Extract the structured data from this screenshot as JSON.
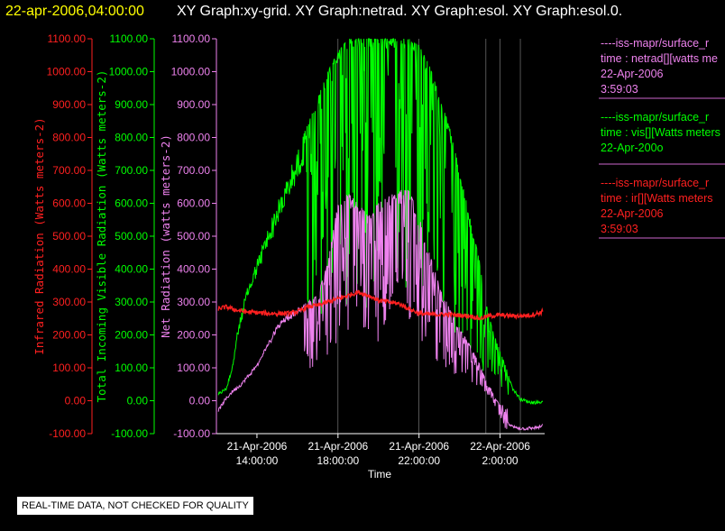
{
  "header": {
    "datetime": "22-apr-2006,04:00:00",
    "graph_title": "XY Graph:xy-grid.  XY Graph:netrad.  XY Graph:esol.  XY Graph:esol.0."
  },
  "colors": {
    "background": "#000000",
    "header_datetime": "#ffff00",
    "infrared": "#ff2020",
    "visible": "#00ff00",
    "net": "#ee82ee",
    "axis_white": "#ffffff",
    "grid": "#ffffff",
    "legend_rule": "#cc66cc"
  },
  "quality_note": "REAL-TIME DATA, NOT CHECKED FOR QUALITY",
  "legend": [
    {
      "color": "#ee82ee",
      "lines": [
        "----iss-mapr/surface_r",
        "time : netrad[][watts me",
        "22-Apr-2006",
        "3:59:03"
      ]
    },
    {
      "color": "#00ff00",
      "lines": [
        "----iss-mapr/surface_r",
        "time : vis[][Watts meters",
        "22-Apr-200o"
      ]
    },
    {
      "color": "#ff2020",
      "lines": [
        "----iss-mapr/surface_r",
        "time : ir[][Watts meters",
        "22-Apr-2006",
        "3:59:03"
      ]
    }
  ],
  "chart_data": {
    "type": "line",
    "x_unit": "hours since 21-Apr-2006 00:00",
    "xlabel": "Time",
    "xlim": [
      12.0,
      28.2
    ],
    "x_ticks": [
      {
        "value": 14,
        "line1": "21-Apr-2006",
        "line2": "14:00:00"
      },
      {
        "value": 18,
        "line1": "21-Apr-2006",
        "line2": "18:00:00"
      },
      {
        "value": 22,
        "line1": "21-Apr-2006",
        "line2": "22:00:00"
      },
      {
        "value": 26,
        "line1": "22-Apr-2006",
        "line2": "2:00:00"
      }
    ],
    "vertical_gridlines_at": [
      18,
      22,
      25.3,
      26,
      27.0
    ],
    "y_axes": [
      {
        "id": "ir",
        "color": "#ff2020",
        "label": "Infrared Radiation (Watts meters-2)",
        "ylim": [
          -100,
          1100
        ],
        "ticks": [
          "1100.00",
          "1000.00",
          "900.00",
          "800.00",
          "700.00",
          "600.00",
          "500.00",
          "400.00",
          "300.00",
          "200.00",
          "100.00",
          "0.00",
          "-100.00"
        ]
      },
      {
        "id": "vis",
        "color": "#00ff00",
        "label": "Total Incoming Visible Radiation (Watts meters-2)",
        "ylim": [
          -100,
          1100
        ],
        "ticks": [
          "1100.00",
          "1000.00",
          "900.00",
          "800.00",
          "700.00",
          "600.00",
          "500.00",
          "400.00",
          "300.00",
          "200.00",
          "100.00",
          "0.00",
          "-100.00"
        ]
      },
      {
        "id": "net",
        "color": "#ee82ee",
        "label": "Net Radiation (watts meters-2)",
        "ylim": [
          -100,
          1100
        ],
        "ticks": [
          "1100.00",
          "1000.00",
          "900.00",
          "800.00",
          "700.00",
          "600.00",
          "500.00",
          "400.00",
          "300.00",
          "200.00",
          "100.00",
          "0.00",
          "-100.00"
        ]
      }
    ],
    "series": [
      {
        "id": "vis",
        "color": "#00ff00",
        "envelope": [
          [
            12.1,
            20
          ],
          [
            12.5,
            40
          ],
          [
            12.8,
            110
          ],
          [
            13.0,
            200
          ],
          [
            13.2,
            260
          ],
          [
            13.5,
            340
          ],
          [
            14.0,
            430
          ],
          [
            14.5,
            520
          ],
          [
            15.0,
            600
          ],
          [
            15.5,
            680
          ],
          [
            16.0,
            760
          ],
          [
            16.5,
            840
          ],
          [
            17.0,
            920
          ],
          [
            17.5,
            1000
          ],
          [
            18.0,
            1060
          ],
          [
            18.5,
            1100
          ],
          [
            19.0,
            1100
          ],
          [
            19.5,
            1100
          ],
          [
            20.0,
            1100
          ],
          [
            20.5,
            1100
          ],
          [
            21.0,
            1100
          ],
          [
            21.5,
            1100
          ],
          [
            22.0,
            1080
          ],
          [
            22.5,
            1020
          ],
          [
            23.0,
            930
          ],
          [
            23.5,
            830
          ],
          [
            24.0,
            700
          ],
          [
            24.5,
            560
          ],
          [
            25.0,
            420
          ],
          [
            25.3,
            300
          ],
          [
            25.6,
            220
          ],
          [
            26.0,
            150
          ],
          [
            26.3,
            100
          ],
          [
            26.6,
            40
          ],
          [
            27.0,
            5
          ],
          [
            27.5,
            -5
          ],
          [
            28.0,
            -5
          ],
          [
            28.1,
            0
          ]
        ],
        "noise": [
          [
            12.1,
            12.8,
            0.15
          ],
          [
            12.8,
            16.3,
            0.2
          ],
          [
            16.3,
            24.6,
            0.75
          ],
          [
            24.6,
            26.4,
            0.8
          ],
          [
            26.4,
            28.1,
            0.05
          ]
        ]
      },
      {
        "id": "net",
        "color": "#ee82ee",
        "envelope": [
          [
            12.1,
            -30
          ],
          [
            12.4,
            0
          ],
          [
            12.8,
            30
          ],
          [
            13.2,
            50
          ],
          [
            13.6,
            80
          ],
          [
            14.0,
            110
          ],
          [
            14.5,
            170
          ],
          [
            15.0,
            230
          ],
          [
            15.5,
            260
          ],
          [
            16.0,
            280
          ],
          [
            16.5,
            300
          ],
          [
            17.0,
            320
          ],
          [
            17.5,
            420
          ],
          [
            18.0,
            600
          ],
          [
            18.5,
            630
          ],
          [
            19.0,
            600
          ],
          [
            19.5,
            560
          ],
          [
            20.0,
            600
          ],
          [
            20.5,
            620
          ],
          [
            21.0,
            640
          ],
          [
            21.5,
            640
          ],
          [
            22.0,
            560
          ],
          [
            22.5,
            450
          ],
          [
            23.0,
            350
          ],
          [
            23.5,
            280
          ],
          [
            24.0,
            220
          ],
          [
            24.5,
            170
          ],
          [
            25.0,
            110
          ],
          [
            25.3,
            60
          ],
          [
            25.6,
            30
          ],
          [
            26.0,
            -20
          ],
          [
            26.3,
            -60
          ],
          [
            26.6,
            -80
          ],
          [
            27.0,
            -85
          ],
          [
            27.5,
            -85
          ],
          [
            28.0,
            -80
          ],
          [
            28.1,
            -75
          ]
        ],
        "noise": [
          [
            12.1,
            13.0,
            0.08
          ],
          [
            13.0,
            16.3,
            0.1
          ],
          [
            16.3,
            24.6,
            0.7
          ],
          [
            24.6,
            26.4,
            0.65
          ],
          [
            26.4,
            28.1,
            0.03
          ]
        ]
      },
      {
        "id": "ir",
        "color": "#ff2020",
        "envelope": [
          [
            12.1,
            280
          ],
          [
            12.5,
            285
          ],
          [
            13.0,
            275
          ],
          [
            13.5,
            270
          ],
          [
            14.0,
            268
          ],
          [
            14.5,
            265
          ],
          [
            15.0,
            265
          ],
          [
            15.5,
            265
          ],
          [
            16.0,
            270
          ],
          [
            16.5,
            285
          ],
          [
            17.0,
            290
          ],
          [
            17.5,
            300
          ],
          [
            18.0,
            310
          ],
          [
            18.5,
            320
          ],
          [
            19.0,
            330
          ],
          [
            19.5,
            320
          ],
          [
            20.0,
            305
          ],
          [
            20.5,
            300
          ],
          [
            21.0,
            295
          ],
          [
            21.5,
            280
          ],
          [
            22.0,
            265
          ],
          [
            22.5,
            262
          ],
          [
            23.0,
            262
          ],
          [
            23.5,
            262
          ],
          [
            24.0,
            260
          ],
          [
            24.5,
            258
          ],
          [
            25.0,
            250
          ],
          [
            25.5,
            258
          ],
          [
            26.0,
            260
          ],
          [
            26.5,
            258
          ],
          [
            27.0,
            258
          ],
          [
            27.5,
            260
          ],
          [
            28.0,
            268
          ],
          [
            28.1,
            272
          ]
        ],
        "noise": [
          [
            12.1,
            28.1,
            0.04
          ]
        ]
      }
    ]
  }
}
